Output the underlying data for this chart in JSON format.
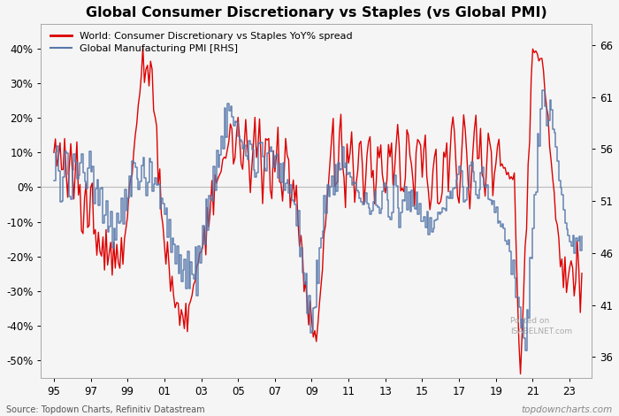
{
  "title": "Global Consumer Discretionary vs Staples (vs Global PMI)",
  "legend1": "World: Consumer Discretionary vs Staples YoY% spread",
  "legend2": "Global Manufacturing PMI [RHS]",
  "source_text": "Source: Topdown Charts, Refinitiv Datastream",
  "watermark": "topdowncharts.com",
  "watermark2": "Posted on\nISABELNET.com",
  "left_color": "#dd0000",
  "right_color": "#5577aa",
  "background": "#f5f5f5",
  "plot_bg": "#f5f5f5",
  "ylim_left": [
    -0.55,
    0.47
  ],
  "ylim_right": [
    34,
    68
  ],
  "yticks_left": [
    -0.5,
    -0.4,
    -0.3,
    -0.2,
    -0.1,
    0.0,
    0.1,
    0.2,
    0.3,
    0.4
  ],
  "ytick_labels_left": [
    "-50%",
    "-40%",
    "-30%",
    "-20%",
    "-10%",
    "0%",
    "10%",
    "20%",
    "30%",
    "40%"
  ],
  "yticks_right": [
    36,
    41,
    46,
    51,
    56,
    61,
    66
  ],
  "xticks": [
    1995,
    1997,
    1999,
    2001,
    2003,
    2005,
    2007,
    2009,
    2011,
    2013,
    2015,
    2017,
    2019,
    2021,
    2023
  ],
  "xtick_labels": [
    "95",
    "97",
    "99",
    "01",
    "03",
    "05",
    "07",
    "09",
    "11",
    "13",
    "15",
    "17",
    "19",
    "21",
    "23"
  ],
  "xlim": [
    1994.3,
    2024.2
  ]
}
